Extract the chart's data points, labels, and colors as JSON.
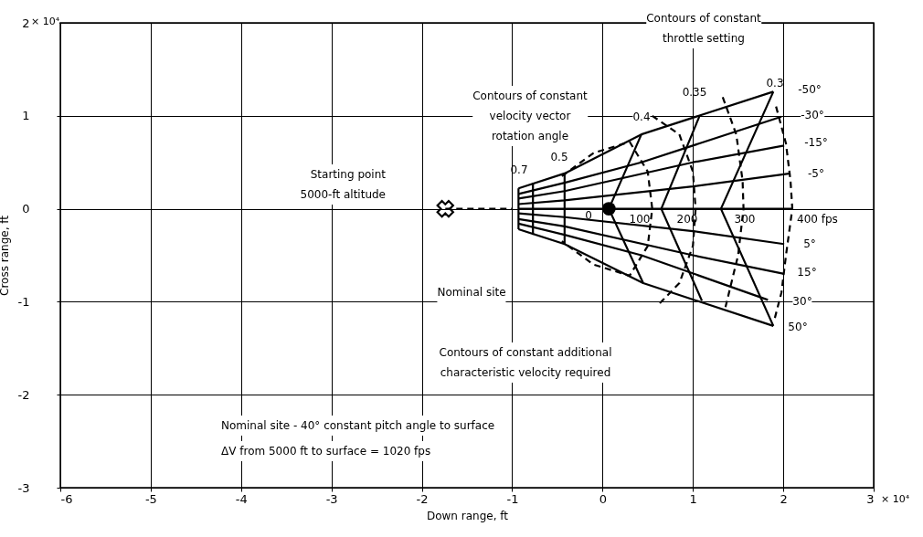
{
  "chart_data": {
    "type": "line",
    "xlabel": "Down range, ft",
    "ylabel": "Cross range, ft",
    "xlim": [
      -6,
      3
    ],
    "xticks": [
      -6,
      -5,
      -4,
      -3,
      -2,
      -1,
      0,
      1,
      2,
      3
    ],
    "ylim": [
      -3,
      2
    ],
    "yticks": [
      -3,
      -2,
      -1,
      0,
      1,
      2
    ],
    "grid": true,
    "series": [
      {
        "color": "#000000",
        "line_style": "solid",
        "x": [
          -0.93,
          -0.42,
          0.43,
          1.89
        ],
        "values": [
          0.22,
          0.38,
          0.8,
          1.26
        ]
      },
      {
        "color": "#000000",
        "line_style": "solid",
        "x": [
          -0.93,
          -0.42,
          0.43,
          1.98
        ],
        "values": [
          0.16,
          0.28,
          0.5,
          0.99
        ]
      },
      {
        "color": "#000000",
        "line_style": "solid",
        "x": [
          -0.93,
          -0.42,
          1.0,
          2.01
        ],
        "values": [
          0.11,
          0.19,
          0.5,
          0.68
        ]
      },
      {
        "color": "#000000",
        "line_style": "solid",
        "x": [
          -0.93,
          -0.42,
          1.0,
          2.08
        ],
        "values": [
          0.05,
          0.09,
          0.24,
          0.38
        ]
      },
      {
        "color": "#000000",
        "line_style": "solid",
        "x": [
          -0.93,
          2.1
        ],
        "values": [
          0,
          0
        ]
      },
      {
        "color": "#000000",
        "line_style": "solid",
        "x": [
          -0.93,
          -0.42,
          1.0,
          2.01
        ],
        "values": [
          -0.05,
          -0.09,
          -0.24,
          -0.38
        ]
      },
      {
        "color": "#000000",
        "line_style": "solid",
        "x": [
          -0.93,
          -0.42,
          1.0,
          2.01
        ],
        "values": [
          -0.11,
          -0.19,
          -0.5,
          -0.7
        ]
      },
      {
        "color": "#000000",
        "line_style": "solid",
        "x": [
          -0.93,
          -0.42,
          0.43,
          1.83
        ],
        "values": [
          -0.16,
          -0.28,
          -0.5,
          -0.98
        ]
      },
      {
        "color": "#000000",
        "line_style": "solid",
        "x": [
          -0.93,
          -0.42,
          0.45,
          1.89
        ],
        "values": [
          -0.22,
          -0.38,
          -0.8,
          -1.26
        ]
      },
      {
        "color": "#000000",
        "line_style": "solid",
        "x": [
          -0.93,
          -0.93
        ],
        "values": [
          0.22,
          -0.22
        ]
      },
      {
        "color": "#000000",
        "line_style": "solid",
        "x": [
          -0.77,
          -0.77
        ],
        "values": [
          0.28,
          -0.28
        ]
      },
      {
        "color": "#000000",
        "line_style": "solid",
        "x": [
          -0.42,
          -0.42
        ],
        "values": [
          0.38,
          -0.38
        ]
      },
      {
        "color": "#000000",
        "line_style": "solid",
        "x": [
          0.43,
          0.07,
          0.45
        ],
        "values": [
          0.8,
          0,
          -0.8
        ]
      },
      {
        "color": "#000000",
        "line_style": "solid",
        "x": [
          1.07,
          0.65,
          1.1
        ],
        "values": [
          0.99,
          0,
          -0.99
        ]
      },
      {
        "color": "#000000",
        "line_style": "solid",
        "x": [
          1.89,
          1.31,
          1.89
        ],
        "values": [
          1.26,
          0,
          -1.26
        ]
      },
      {
        "color": "#000000",
        "line_style": "dashed",
        "x": [
          -0.45,
          -0.1,
          0.3,
          0.5,
          0.55,
          0.5,
          0.3,
          -0.1,
          -0.45
        ],
        "values": [
          0.35,
          0.6,
          0.72,
          0.4,
          0,
          -0.4,
          -0.72,
          -0.6,
          -0.35
        ]
      },
      {
        "color": "#000000",
        "line_style": "dashed",
        "x": [
          0.55,
          0.85,
          1.0,
          1.03,
          1.0,
          0.85,
          0.6
        ],
        "values": [
          1.0,
          0.8,
          0.4,
          0,
          -0.4,
          -0.8,
          -1.05
        ]
      },
      {
        "color": "#000000",
        "line_style": "dashed",
        "x": [
          1.33,
          1.48,
          1.55,
          1.56,
          1.5,
          1.35
        ],
        "values": [
          1.2,
          0.8,
          0.3,
          0,
          -0.5,
          -1.1
        ]
      },
      {
        "color": "#000000",
        "line_style": "dashed",
        "x": [
          1.92,
          2.03,
          2.08,
          2.1,
          2.03,
          1.98,
          1.9
        ],
        "values": [
          1.1,
          0.7,
          0.3,
          0,
          -0.5,
          -0.9,
          -1.2
        ]
      },
      {
        "color": "#000000",
        "line_style": "dashed",
        "x": [
          -1.74,
          -1.0
        ],
        "values": [
          0,
          0
        ]
      },
      {
        "type": "scatter",
        "color": "#000000",
        "marker": "cross",
        "x": [
          -1.74
        ],
        "values": [
          0
        ]
      },
      {
        "type": "scatter",
        "color": "#000000",
        "marker": "circle",
        "x": [
          0.07
        ],
        "values": [
          0
        ]
      }
    ],
    "annotations": [
      "Contours of constant\nthrottle setting",
      "Contours of constant\nvelocity vector\nrotation angle",
      "Starting point\n5000-ft altitude",
      "Nominal site",
      "Contours of constant additional\ncharacteristic velocity required",
      "0.3",
      "0.35",
      "0.4",
      "0.5",
      "0.7",
      "-50°",
      "-30°",
      "-15°",
      "-5°",
      "5°",
      "15°",
      "30°",
      "50°",
      "0",
      "100",
      "200",
      "300",
      "400 fps",
      "Nominal site - 40° constant pitch angle to surface",
      "ΔV from 5000 ft to surface = 1020 fps",
      "× 10⁴",
      "× 10⁴"
    ]
  }
}
